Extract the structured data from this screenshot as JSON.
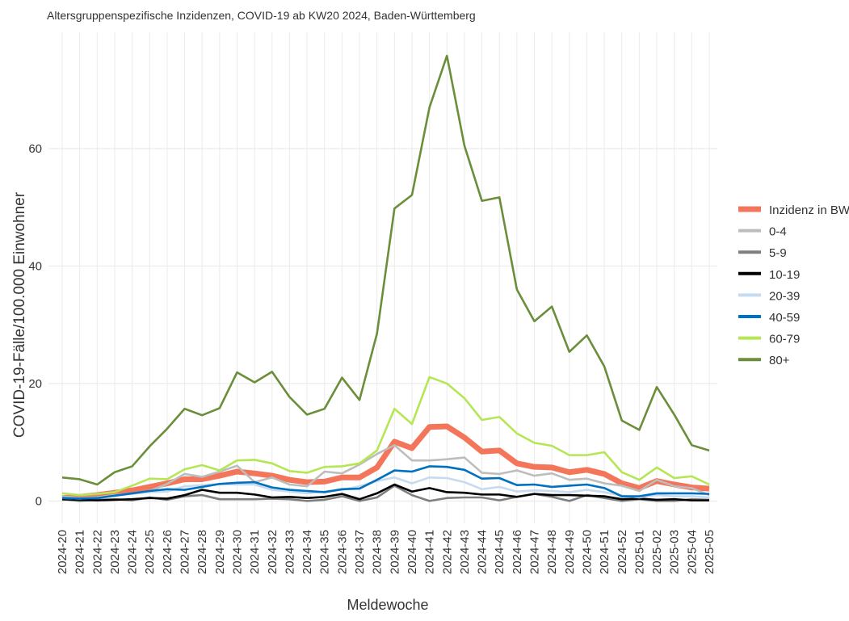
{
  "chart_data": {
    "type": "line",
    "title": "Altersgruppenspezifische Inzidenzen, COVID-19 ab KW20 2024, Baden-Württemberg",
    "x_label": "Meldewoche",
    "y_label": "COVID-19-Fälle/100.000 Einwohner",
    "categories": [
      "2024-20",
      "2024-21",
      "2024-22",
      "2024-23",
      "2024-24",
      "2024-25",
      "2024-26",
      "2024-27",
      "2024-28",
      "2024-29",
      "2024-30",
      "2024-31",
      "2024-32",
      "2024-33",
      "2024-34",
      "2024-35",
      "2024-36",
      "2024-37",
      "2024-38",
      "2024-39",
      "2024-40",
      "2024-41",
      "2024-42",
      "2024-43",
      "2024-44",
      "2024-45",
      "2024-46",
      "2024-47",
      "2024-48",
      "2024-49",
      "2024-50",
      "2024-51",
      "2024-52",
      "2025-01",
      "2025-02",
      "2025-03",
      "2025-04",
      "2025-05"
    ],
    "ylim": [
      -3.8,
      79.8
    ],
    "yticks": [
      0,
      20,
      40,
      60
    ],
    "grid": true,
    "legend": "right",
    "series": [
      {
        "name": "Inzidenz in BW",
        "color": "#f4765a",
        "values": [
          0.5,
          0.7,
          1.0,
          1.4,
          1.8,
          2.4,
          3.0,
          3.7,
          3.7,
          4.3,
          5.0,
          4.7,
          4.3,
          3.6,
          3.2,
          3.3,
          4.0,
          4.0,
          5.7,
          10.1,
          9.0,
          12.6,
          12.7,
          10.8,
          8.4,
          8.6,
          6.4,
          5.8,
          5.7,
          4.9,
          5.3,
          4.6,
          3.0,
          2.2,
          3.4,
          2.8,
          2.3,
          2.1
        ]
      },
      {
        "name": "0-4",
        "color": "#bdbdbd",
        "values": [
          0.8,
          0.5,
          0.6,
          1.0,
          1.3,
          1.7,
          2.9,
          4.6,
          4.1,
          5.0,
          6.0,
          3.2,
          4.0,
          2.8,
          2.5,
          5.0,
          4.7,
          6.2,
          8.0,
          9.5,
          6.9,
          6.9,
          7.1,
          7.4,
          4.8,
          4.6,
          5.2,
          4.3,
          4.7,
          3.6,
          3.8,
          3.0,
          2.6,
          1.7,
          3.6,
          2.5,
          2.2,
          1.0
        ]
      },
      {
        "name": "5-9",
        "color": "#7f7f7f",
        "values": [
          0.3,
          0.0,
          0.2,
          0.3,
          0.1,
          0.6,
          0.2,
          0.8,
          1.0,
          0.3,
          0.3,
          0.3,
          0.4,
          0.3,
          0.0,
          0.2,
          0.8,
          0.0,
          0.6,
          2.6,
          1.0,
          0.0,
          0.5,
          0.6,
          0.6,
          0.1,
          0.7,
          1.2,
          0.7,
          0.0,
          1.0,
          0.5,
          0.0,
          0.3,
          0.0,
          0.0,
          0.3,
          0.2
        ]
      },
      {
        "name": "10-19",
        "color": "#000000",
        "values": [
          0.3,
          0.2,
          0.1,
          0.2,
          0.3,
          0.5,
          0.4,
          1.0,
          1.9,
          1.4,
          1.4,
          1.1,
          0.6,
          0.7,
          0.5,
          0.7,
          1.2,
          0.3,
          1.3,
          2.8,
          1.6,
          2.2,
          1.5,
          1.4,
          1.1,
          1.1,
          0.7,
          1.2,
          1.0,
          1.0,
          0.9,
          0.8,
          0.3,
          0.4,
          0.2,
          0.3,
          0.1,
          0.1
        ]
      },
      {
        "name": "20-39",
        "color": "#c6dbef",
        "values": [
          0.5,
          0.4,
          0.6,
          0.9,
          1.2,
          1.5,
          1.6,
          2.5,
          2.7,
          2.9,
          2.8,
          2.8,
          1.9,
          1.6,
          1.3,
          1.6,
          1.9,
          2.5,
          3.4,
          4.0,
          3.0,
          4.0,
          3.9,
          3.2,
          2.0,
          2.4,
          1.6,
          1.8,
          1.7,
          1.5,
          1.9,
          1.5,
          0.9,
          0.6,
          1.0,
          0.8,
          0.8,
          0.6
        ]
      },
      {
        "name": "40-59",
        "color": "#0070c0",
        "values": [
          0.5,
          0.4,
          0.5,
          0.9,
          1.3,
          1.7,
          2.0,
          1.9,
          2.4,
          2.9,
          3.1,
          3.2,
          2.3,
          1.9,
          1.7,
          1.5,
          2.0,
          2.1,
          3.6,
          5.2,
          5.0,
          5.9,
          5.8,
          5.3,
          3.8,
          3.9,
          2.7,
          2.8,
          2.4,
          2.6,
          2.8,
          2.2,
          0.8,
          0.8,
          1.3,
          1.3,
          1.3,
          1.2
        ]
      },
      {
        "name": "60-79",
        "color": "#b5e655",
        "values": [
          1.3,
          1.0,
          1.2,
          1.5,
          2.6,
          3.8,
          3.7,
          5.4,
          6.1,
          5.2,
          6.9,
          7.0,
          6.4,
          5.1,
          4.8,
          5.8,
          5.9,
          6.4,
          8.6,
          15.7,
          13.1,
          21.1,
          20.0,
          17.5,
          13.8,
          14.3,
          11.5,
          9.9,
          9.4,
          7.8,
          7.8,
          8.3,
          4.9,
          3.6,
          5.7,
          3.9,
          4.2,
          2.8
        ]
      },
      {
        "name": "80+",
        "color": "#6b8e3a",
        "values": [
          4.0,
          3.7,
          2.8,
          4.9,
          5.9,
          9.3,
          12.3,
          15.7,
          14.6,
          15.8,
          21.9,
          20.2,
          22.0,
          17.7,
          14.7,
          15.7,
          21.0,
          17.2,
          28.5,
          49.8,
          52.1,
          67.0,
          75.8,
          60.5,
          51.1,
          51.7,
          36.0,
          30.6,
          33.1,
          25.4,
          28.2,
          22.9,
          13.7,
          12.1,
          19.4,
          14.7,
          9.5,
          8.6
        ]
      }
    ]
  }
}
